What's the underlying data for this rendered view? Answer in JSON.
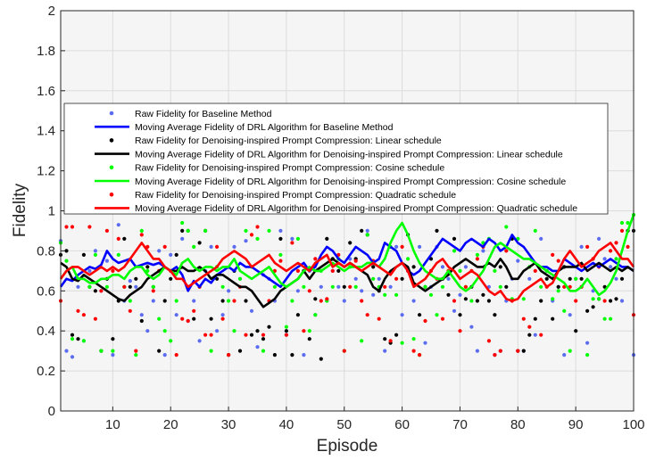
{
  "chart_data": {
    "type": "line",
    "xlabel": "Episode",
    "ylabel": "Fidelity",
    "xlim": [
      1,
      100
    ],
    "ylim": [
      0,
      2
    ],
    "xticks": [
      10,
      20,
      30,
      40,
      50,
      60,
      70,
      80,
      90,
      100
    ],
    "yticks": [
      0,
      0.2,
      0.4,
      0.6,
      0.8,
      1,
      1.2,
      1.4,
      1.6,
      1.8,
      2
    ],
    "grid": true,
    "legend_position": "upper-middle",
    "legend": [
      "Raw Fidelity for Baseline Method",
      "Moving Average Fidelity of DRL Algorithm for Baseline Method",
      "Raw Fidelity for Denoising-inspired Prompt Compression: Linear schedule",
      "Moving Average Fidelity of DRL Algorithm for Denoising-inspired Prompt Compression: Linear schedule",
      "Raw Fidelity for Denoising-inspired Prompt Compression: Cosine schedule",
      "Moving Average Fidelity of DRL Algorithm for Denoising-inspired Prompt Compression: Cosine schedule",
      "Raw Fidelity for Denoising-inspired Prompt Compression: Quadratic schedule",
      "Moving Average Fidelity of DRL Algorithm for Denoising-inspired Prompt Compression: Quadratic schedule"
    ],
    "colors": {
      "baseline": "#0000ff",
      "baseline_raw": "#5b6cf0",
      "linear": "#000000",
      "cosine": "#00ff00",
      "quadratic": "#ff0000"
    },
    "x": [
      1,
      2,
      3,
      4,
      5,
      6,
      7,
      8,
      9,
      10,
      11,
      12,
      13,
      14,
      15,
      16,
      17,
      18,
      19,
      20,
      21,
      22,
      23,
      24,
      25,
      26,
      27,
      28,
      29,
      30,
      31,
      32,
      33,
      34,
      35,
      36,
      37,
      38,
      39,
      40,
      41,
      42,
      43,
      44,
      45,
      46,
      47,
      48,
      49,
      50,
      51,
      52,
      53,
      54,
      55,
      56,
      57,
      58,
      59,
      60,
      61,
      62,
      63,
      64,
      65,
      66,
      67,
      68,
      69,
      70,
      71,
      72,
      73,
      74,
      75,
      76,
      77,
      78,
      79,
      80,
      81,
      82,
      83,
      84,
      85,
      86,
      87,
      88,
      89,
      90,
      91,
      92,
      93,
      94,
      95,
      96,
      97,
      98,
      99,
      100
    ],
    "series": [
      {
        "key": "baseline_raw",
        "kind": "scatter",
        "values": [
          0.85,
          0.3,
          0.27,
          0.62,
          0.35,
          0.7,
          0.8,
          0.6,
          0.75,
          0.28,
          0.93,
          0.55,
          0.65,
          0.62,
          0.48,
          0.4,
          0.55,
          0.8,
          0.28,
          0.78,
          0.48,
          0.86,
          0.45,
          0.55,
          0.35,
          0.7,
          0.82,
          0.4,
          0.48,
          0.6,
          0.82,
          0.66,
          0.85,
          0.5,
          0.32,
          0.68,
          0.66,
          0.55,
          0.9,
          0.38,
          0.86,
          0.6,
          0.28,
          0.7,
          0.48,
          0.62,
          0.55,
          0.7,
          0.62,
          0.55,
          0.76,
          0.66,
          0.6,
          0.9,
          0.58,
          0.66,
          0.3,
          0.62,
          0.82,
          0.48,
          0.7,
          0.55,
          0.82,
          0.34,
          0.62,
          0.82,
          0.72,
          0.66,
          0.5,
          0.58,
          0.72,
          0.42,
          0.3,
          0.8,
          0.62,
          0.28,
          0.3,
          0.55,
          0.66,
          0.75,
          0.3,
          0.66,
          0.38,
          0.86,
          0.7,
          0.55,
          0.62,
          0.28,
          0.48,
          0.66,
          0.82,
          0.34,
          0.6,
          0.86,
          0.76,
          0.72,
          0.66,
          0.55,
          0.9,
          0.28
        ]
      },
      {
        "key": "baseline",
        "kind": "line",
        "values": [
          0.62,
          0.66,
          0.65,
          0.68,
          0.7,
          0.72,
          0.71,
          0.73,
          0.8,
          0.76,
          0.74,
          0.75,
          0.76,
          0.72,
          0.73,
          0.74,
          0.73,
          0.74,
          0.72,
          0.7,
          0.72,
          0.68,
          0.6,
          0.65,
          0.62,
          0.66,
          0.64,
          0.68,
          0.7,
          0.72,
          0.7,
          0.74,
          0.72,
          0.72,
          0.7,
          0.68,
          0.66,
          0.64,
          0.62,
          0.66,
          0.7,
          0.72,
          0.74,
          0.7,
          0.72,
          0.78,
          0.82,
          0.8,
          0.76,
          0.74,
          0.78,
          0.82,
          0.8,
          0.78,
          0.74,
          0.76,
          0.84,
          0.82,
          0.8,
          0.74,
          0.7,
          0.68,
          0.7,
          0.74,
          0.78,
          0.82,
          0.86,
          0.84,
          0.82,
          0.8,
          0.84,
          0.86,
          0.84,
          0.82,
          0.86,
          0.84,
          0.8,
          0.82,
          0.88,
          0.84,
          0.82,
          0.78,
          0.74,
          0.72,
          0.72,
          0.7,
          0.7,
          0.76,
          0.74,
          0.72,
          0.7,
          0.72,
          0.74,
          0.72,
          0.74,
          0.76,
          0.74,
          0.72,
          0.72,
          0.7
        ]
      },
      {
        "key": "linear_raw",
        "kind": "scatter",
        "values": [
          0.78,
          0.8,
          0.38,
          0.36,
          0.78,
          0.62,
          0.6,
          0.3,
          0.66,
          0.36,
          0.55,
          0.86,
          0.62,
          0.66,
          0.45,
          0.72,
          0.62,
          0.3,
          0.55,
          0.66,
          0.78,
          0.9,
          0.9,
          0.46,
          0.84,
          0.9,
          0.46,
          0.66,
          0.55,
          0.28,
          0.7,
          0.3,
          0.55,
          0.38,
          0.4,
          0.36,
          0.42,
          0.28,
          0.86,
          0.4,
          0.28,
          0.48,
          0.7,
          0.36,
          0.56,
          0.26,
          0.86,
          0.76,
          0.7,
          0.62,
          0.84,
          0.76,
          0.9,
          0.88,
          0.72,
          0.6,
          0.36,
          0.34,
          0.38,
          0.66,
          0.88,
          0.72,
          0.48,
          0.62,
          0.76,
          0.9,
          0.66,
          0.58,
          0.86,
          0.48,
          0.56,
          0.62,
          0.55,
          0.58,
          0.55,
          0.48,
          0.72,
          0.62,
          0.86,
          0.3,
          0.3,
          0.38,
          0.46,
          0.55,
          0.66,
          0.46,
          0.62,
          0.72,
          0.66,
          0.4,
          0.66,
          0.5,
          0.52,
          0.56,
          0.62,
          0.55,
          0.56,
          0.66,
          0.9,
          0.9
        ]
      },
      {
        "key": "linear",
        "kind": "line",
        "values": [
          0.74,
          0.72,
          0.66,
          0.65,
          0.68,
          0.66,
          0.64,
          0.62,
          0.6,
          0.58,
          0.56,
          0.55,
          0.58,
          0.6,
          0.62,
          0.66,
          0.68,
          0.7,
          0.72,
          0.7,
          0.7,
          0.72,
          0.7,
          0.7,
          0.72,
          0.7,
          0.66,
          0.68,
          0.68,
          0.66,
          0.64,
          0.62,
          0.62,
          0.6,
          0.56,
          0.52,
          0.54,
          0.56,
          0.6,
          0.62,
          0.64,
          0.66,
          0.7,
          0.66,
          0.7,
          0.72,
          0.74,
          0.76,
          0.74,
          0.72,
          0.74,
          0.72,
          0.7,
          0.68,
          0.62,
          0.6,
          0.66,
          0.7,
          0.72,
          0.74,
          0.72,
          0.64,
          0.62,
          0.6,
          0.62,
          0.64,
          0.66,
          0.68,
          0.72,
          0.74,
          0.76,
          0.74,
          0.72,
          0.72,
          0.74,
          0.72,
          0.76,
          0.72,
          0.66,
          0.66,
          0.7,
          0.72,
          0.74,
          0.7,
          0.68,
          0.66,
          0.7,
          0.72,
          0.72,
          0.72,
          0.74,
          0.7,
          0.72,
          0.74,
          0.72,
          0.7,
          0.72,
          0.7,
          0.72,
          0.7
        ]
      },
      {
        "key": "cosine_raw",
        "kind": "scatter",
        "values": [
          0.84,
          0.75,
          0.36,
          0.66,
          0.35,
          0.62,
          0.78,
          0.3,
          0.62,
          0.3,
          0.78,
          0.62,
          0.55,
          0.28,
          0.9,
          0.7,
          0.62,
          0.46,
          0.4,
          0.35,
          0.55,
          0.94,
          0.9,
          0.82,
          0.62,
          0.9,
          0.3,
          0.72,
          0.62,
          0.55,
          0.4,
          0.66,
          0.9,
          0.72,
          0.86,
          0.3,
          0.9,
          0.62,
          0.78,
          0.42,
          0.55,
          0.86,
          0.62,
          0.4,
          0.48,
          0.7,
          0.55,
          0.62,
          0.76,
          0.3,
          0.72,
          0.62,
          0.35,
          0.88,
          0.66,
          0.62,
          0.58,
          0.82,
          0.58,
          0.34,
          0.76,
          0.36,
          0.28,
          0.62,
          0.58,
          0.48,
          0.62,
          0.7,
          0.8,
          0.7,
          0.62,
          0.55,
          0.78,
          0.84,
          0.86,
          0.7,
          0.62,
          0.92,
          0.56,
          0.86,
          0.56,
          0.72,
          0.9,
          0.62,
          0.7,
          0.56,
          0.6,
          0.5,
          0.3,
          0.66,
          0.62,
          0.28,
          0.56,
          0.56,
          0.46,
          0.46,
          0.76,
          0.94,
          0.94,
          0.98
        ]
      },
      {
        "key": "cosine",
        "kind": "line",
        "values": [
          0.66,
          0.7,
          0.72,
          0.66,
          0.66,
          0.64,
          0.64,
          0.66,
          0.66,
          0.68,
          0.68,
          0.66,
          0.7,
          0.72,
          0.72,
          0.68,
          0.66,
          0.68,
          0.72,
          0.7,
          0.68,
          0.74,
          0.76,
          0.72,
          0.7,
          0.72,
          0.72,
          0.7,
          0.72,
          0.72,
          0.76,
          0.7,
          0.68,
          0.66,
          0.68,
          0.7,
          0.72,
          0.68,
          0.64,
          0.62,
          0.64,
          0.66,
          0.7,
          0.72,
          0.7,
          0.7,
          0.72,
          0.74,
          0.72,
          0.7,
          0.72,
          0.72,
          0.72,
          0.74,
          0.74,
          0.72,
          0.76,
          0.84,
          0.9,
          0.94,
          0.88,
          0.8,
          0.74,
          0.7,
          0.68,
          0.66,
          0.66,
          0.7,
          0.66,
          0.62,
          0.6,
          0.62,
          0.66,
          0.7,
          0.76,
          0.82,
          0.84,
          0.82,
          0.8,
          0.78,
          0.76,
          0.76,
          0.74,
          0.72,
          0.7,
          0.68,
          0.66,
          0.64,
          0.6,
          0.6,
          0.62,
          0.66,
          0.62,
          0.58,
          0.6,
          0.64,
          0.7,
          0.8,
          0.9,
          0.98
        ]
      },
      {
        "key": "quadratic_raw",
        "kind": "scatter",
        "values": [
          0.55,
          0.92,
          0.92,
          0.5,
          0.48,
          0.92,
          0.46,
          0.6,
          0.9,
          0.7,
          0.86,
          0.62,
          0.5,
          0.3,
          0.88,
          0.82,
          0.6,
          0.7,
          0.82,
          0.7,
          0.28,
          0.46,
          0.45,
          0.5,
          0.62,
          0.38,
          0.38,
          0.82,
          0.46,
          0.28,
          0.55,
          0.62,
          0.38,
          0.88,
          0.92,
          0.38,
          0.55,
          0.7,
          0.75,
          0.38,
          0.84,
          0.7,
          0.4,
          0.6,
          0.76,
          0.55,
          0.56,
          0.7,
          0.78,
          0.3,
          0.62,
          0.75,
          0.55,
          0.48,
          0.75,
          0.46,
          0.62,
          0.35,
          0.66,
          0.82,
          0.7,
          0.3,
          0.28,
          0.45,
          0.7,
          0.66,
          0.46,
          0.7,
          0.55,
          0.4,
          0.62,
          0.7,
          0.76,
          0.82,
          0.35,
          0.28,
          0.3,
          0.8,
          0.55,
          0.3,
          0.46,
          0.42,
          0.7,
          0.38,
          0.62,
          0.78,
          0.75,
          0.62,
          0.62,
          0.55,
          0.62,
          0.82,
          0.76,
          0.72,
          0.55,
          0.8,
          0.84,
          0.9,
          0.82,
          0.48
        ]
      },
      {
        "key": "quadratic",
        "kind": "line",
        "values": [
          0.66,
          0.7,
          0.72,
          0.72,
          0.7,
          0.68,
          0.7,
          0.72,
          0.7,
          0.72,
          0.7,
          0.72,
          0.76,
          0.8,
          0.84,
          0.8,
          0.76,
          0.76,
          0.72,
          0.7,
          0.66,
          0.66,
          0.62,
          0.64,
          0.66,
          0.68,
          0.7,
          0.72,
          0.76,
          0.78,
          0.8,
          0.78,
          0.76,
          0.72,
          0.74,
          0.76,
          0.78,
          0.74,
          0.72,
          0.7,
          0.72,
          0.74,
          0.72,
          0.7,
          0.74,
          0.76,
          0.78,
          0.72,
          0.74,
          0.72,
          0.74,
          0.72,
          0.7,
          0.72,
          0.74,
          0.72,
          0.7,
          0.68,
          0.72,
          0.74,
          0.7,
          0.62,
          0.64,
          0.66,
          0.7,
          0.74,
          0.76,
          0.72,
          0.7,
          0.66,
          0.68,
          0.7,
          0.68,
          0.64,
          0.6,
          0.58,
          0.6,
          0.56,
          0.55,
          0.56,
          0.6,
          0.62,
          0.64,
          0.66,
          0.62,
          0.64,
          0.7,
          0.76,
          0.8,
          0.76,
          0.72,
          0.74,
          0.76,
          0.8,
          0.82,
          0.84,
          0.8,
          0.76,
          0.76,
          0.72
        ]
      }
    ]
  }
}
